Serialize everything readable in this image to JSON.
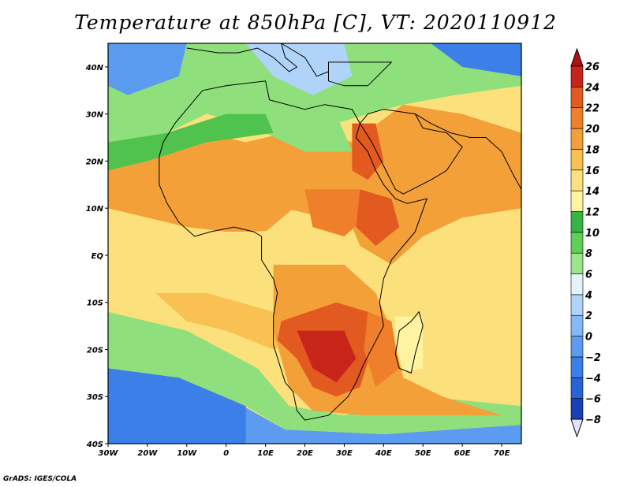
{
  "title": "Temperature at 850hPa [C], VT: 2020110912",
  "footer": "GrADS: IGES/COLA",
  "map": {
    "lon_range": [
      -30,
      75
    ],
    "lat_range": [
      -40,
      45
    ],
    "lat_ticks": [
      {
        "value": 40,
        "label": "40N"
      },
      {
        "value": 30,
        "label": "30N"
      },
      {
        "value": 20,
        "label": "20N"
      },
      {
        "value": 10,
        "label": "10N"
      },
      {
        "value": 0,
        "label": "EQ"
      },
      {
        "value": -10,
        "label": "10S"
      },
      {
        "value": -20,
        "label": "20S"
      },
      {
        "value": -30,
        "label": "30S"
      },
      {
        "value": -40,
        "label": "40S"
      }
    ],
    "lon_ticks": [
      {
        "value": -30,
        "label": "30W"
      },
      {
        "value": -20,
        "label": "20W"
      },
      {
        "value": -10,
        "label": "10W"
      },
      {
        "value": 0,
        "label": "0"
      },
      {
        "value": 10,
        "label": "10E"
      },
      {
        "value": 20,
        "label": "20E"
      },
      {
        "value": 30,
        "label": "30E"
      },
      {
        "value": 40,
        "label": "40E"
      },
      {
        "value": 50,
        "label": "50E"
      },
      {
        "value": 60,
        "label": "60E"
      },
      {
        "value": 70,
        "label": "70E"
      }
    ],
    "background_value": 16,
    "temperature_regions": [
      {
        "name": "southern-ocean",
        "value": 4,
        "points": [
          [
            -30,
            -40
          ],
          [
            75,
            -40
          ],
          [
            75,
            -36
          ],
          [
            40,
            -38
          ],
          [
            15,
            -37
          ],
          [
            0,
            -30
          ],
          [
            -10,
            -22
          ],
          [
            -30,
            -18
          ]
        ]
      },
      {
        "name": "south-atlantic-cool",
        "value": 2,
        "points": [
          [
            -30,
            -40
          ],
          [
            5,
            -40
          ],
          [
            5,
            -32
          ],
          [
            -12,
            -26
          ],
          [
            -30,
            -24
          ]
        ]
      },
      {
        "name": "sw-atlantic-green",
        "value": 10,
        "points": [
          [
            -30,
            -24
          ],
          [
            -12,
            -26
          ],
          [
            5,
            -32
          ],
          [
            15,
            -37
          ],
          [
            40,
            -38
          ],
          [
            75,
            -36
          ],
          [
            75,
            -32
          ],
          [
            50,
            -30
          ],
          [
            30,
            -34
          ],
          [
            16,
            -32
          ],
          [
            8,
            -24
          ],
          [
            -10,
            -16
          ],
          [
            -30,
            -12
          ]
        ]
      },
      {
        "name": "south-atlantic-warm-tongue",
        "value": 18,
        "points": [
          [
            -18,
            -8
          ],
          [
            -5,
            -8
          ],
          [
            12,
            -12
          ],
          [
            18,
            -18
          ],
          [
            12,
            -20
          ],
          [
            0,
            -16
          ],
          [
            -10,
            -14
          ]
        ]
      },
      {
        "name": "mediterranean-europe",
        "value": 10,
        "points": [
          [
            -30,
            45
          ],
          [
            75,
            45
          ],
          [
            75,
            36
          ],
          [
            58,
            34
          ],
          [
            45,
            32
          ],
          [
            36,
            30
          ],
          [
            28,
            28
          ],
          [
            15,
            26
          ],
          [
            5,
            28
          ],
          [
            -5,
            30
          ],
          [
            -15,
            26
          ],
          [
            -30,
            24
          ]
        ]
      },
      {
        "name": "european-cold",
        "value": 6,
        "points": [
          [
            5,
            45
          ],
          [
            30,
            45
          ],
          [
            32,
            38
          ],
          [
            22,
            34
          ],
          [
            12,
            38
          ]
        ]
      },
      {
        "name": "eastern-europe-blue",
        "value": 2,
        "points": [
          [
            52,
            45
          ],
          [
            75,
            45
          ],
          [
            75,
            38
          ],
          [
            60,
            40
          ]
        ]
      },
      {
        "name": "north-atlantic-blue",
        "value": 4,
        "points": [
          [
            -30,
            45
          ],
          [
            -10,
            45
          ],
          [
            -12,
            38
          ],
          [
            -25,
            34
          ],
          [
            -30,
            36
          ]
        ]
      },
      {
        "name": "west-africa-orange",
        "value": 20,
        "points": [
          [
            -30,
            22
          ],
          [
            -15,
            24
          ],
          [
            -5,
            26
          ],
          [
            5,
            24
          ],
          [
            15,
            20
          ],
          [
            20,
            12
          ],
          [
            10,
            5
          ],
          [
            0,
            5
          ],
          [
            -10,
            6
          ],
          [
            -20,
            8
          ],
          [
            -30,
            10
          ]
        ]
      },
      {
        "name": "sahara-orange",
        "value": 20,
        "points": [
          [
            5,
            24
          ],
          [
            15,
            26
          ],
          [
            25,
            26
          ],
          [
            32,
            24
          ],
          [
            34,
            12
          ],
          [
            25,
            8
          ],
          [
            15,
            10
          ]
        ]
      },
      {
        "name": "horn-arabia-orange",
        "value": 20,
        "points": [
          [
            32,
            24
          ],
          [
            45,
            32
          ],
          [
            60,
            30
          ],
          [
            75,
            26
          ],
          [
            75,
            10
          ],
          [
            60,
            8
          ],
          [
            50,
            4
          ],
          [
            42,
            -2
          ],
          [
            34,
            2
          ],
          [
            30,
            10
          ]
        ]
      },
      {
        "name": "indian-ocean-yellow",
        "value": 16,
        "points": [
          [
            42,
            -2
          ],
          [
            75,
            4
          ],
          [
            75,
            -20
          ],
          [
            60,
            -18
          ],
          [
            50,
            -10
          ]
        ]
      },
      {
        "name": "central-africa-yellow",
        "value": 16,
        "points": [
          [
            5,
            5
          ],
          [
            30,
            6
          ],
          [
            38,
            -4
          ],
          [
            30,
            -8
          ],
          [
            15,
            -4
          ],
          [
            8,
            0
          ]
        ]
      },
      {
        "name": "central-south-orange",
        "value": 20,
        "points": [
          [
            12,
            -2
          ],
          [
            30,
            -2
          ],
          [
            38,
            -8
          ],
          [
            42,
            -16
          ],
          [
            45,
            -26
          ],
          [
            55,
            -30
          ],
          [
            70,
            -34
          ],
          [
            50,
            -34
          ],
          [
            35,
            -34
          ],
          [
            22,
            -33
          ],
          [
            16,
            -28
          ],
          [
            12,
            -16
          ]
        ]
      },
      {
        "name": "southern-africa-red",
        "value": 24,
        "points": [
          [
            14,
            -14
          ],
          [
            28,
            -10
          ],
          [
            36,
            -12
          ],
          [
            37,
            -20
          ],
          [
            34,
            -28
          ],
          [
            28,
            -30
          ],
          [
            22,
            -28
          ],
          [
            18,
            -22
          ],
          [
            13,
            -18
          ]
        ]
      },
      {
        "name": "southern-africa-hot",
        "value": 26,
        "points": [
          [
            18,
            -16
          ],
          [
            30,
            -16
          ],
          [
            33,
            -22
          ],
          [
            28,
            -27
          ],
          [
            22,
            -24
          ]
        ]
      },
      {
        "name": "sahel-red",
        "value": 22,
        "points": [
          [
            20,
            14
          ],
          [
            34,
            14
          ],
          [
            38,
            10
          ],
          [
            30,
            4
          ],
          [
            22,
            6
          ]
        ]
      },
      {
        "name": "ethiopia-red",
        "value": 24,
        "points": [
          [
            34,
            14
          ],
          [
            42,
            12
          ],
          [
            44,
            6
          ],
          [
            38,
            2
          ],
          [
            33,
            6
          ]
        ]
      },
      {
        "name": "red-sea-red",
        "value": 24,
        "points": [
          [
            32,
            28
          ],
          [
            38,
            28
          ],
          [
            40,
            20
          ],
          [
            36,
            16
          ],
          [
            32,
            18
          ]
        ]
      },
      {
        "name": "mozambique-channel-red",
        "value": 22,
        "points": [
          [
            36,
            -12
          ],
          [
            42,
            -14
          ],
          [
            44,
            -24
          ],
          [
            38,
            -28
          ],
          [
            35,
            -20
          ]
        ]
      },
      {
        "name": "madagascar-cool",
        "value": 14,
        "points": [
          [
            43,
            -13
          ],
          [
            50,
            -13
          ],
          [
            50,
            -24
          ],
          [
            45,
            -25
          ],
          [
            43,
            -18
          ]
        ]
      },
      {
        "name": "algeria-green",
        "value": 10,
        "points": [
          [
            8,
            32
          ],
          [
            28,
            30
          ],
          [
            32,
            22
          ],
          [
            20,
            22
          ],
          [
            10,
            26
          ]
        ]
      },
      {
        "name": "saharan-green-strip",
        "value": 12,
        "points": [
          [
            -30,
            24
          ],
          [
            -15,
            26
          ],
          [
            0,
            30
          ],
          [
            10,
            30
          ],
          [
            12,
            26
          ],
          [
            -5,
            24
          ],
          [
            -20,
            20
          ],
          [
            -30,
            18
          ]
        ]
      }
    ],
    "coastline": [
      [
        -17,
        21
      ],
      [
        -16,
        24
      ],
      [
        -13,
        28
      ],
      [
        -9,
        32
      ],
      [
        -6,
        35
      ],
      [
        0,
        36
      ],
      [
        10,
        37
      ],
      [
        11,
        33
      ],
      [
        20,
        31
      ],
      [
        25,
        32
      ],
      [
        32,
        31
      ],
      [
        34,
        28
      ],
      [
        33,
        25
      ],
      [
        36,
        22
      ],
      [
        38,
        18
      ],
      [
        40,
        15
      ],
      [
        43,
        12
      ],
      [
        46,
        11
      ],
      [
        51,
        12
      ],
      [
        48,
        5
      ],
      [
        42,
        -1
      ],
      [
        40,
        -5
      ],
      [
        39,
        -10
      ],
      [
        40,
        -15
      ],
      [
        35,
        -23
      ],
      [
        33,
        -27
      ],
      [
        31,
        -30
      ],
      [
        26,
        -34
      ],
      [
        20,
        -35
      ],
      [
        18,
        -33
      ],
      [
        17,
        -29
      ],
      [
        15,
        -27
      ],
      [
        12,
        -19
      ],
      [
        12,
        -13
      ],
      [
        13,
        -8
      ],
      [
        12,
        -5
      ],
      [
        9,
        -1
      ],
      [
        9,
        4
      ],
      [
        7,
        5
      ],
      [
        2,
        6
      ],
      [
        -4,
        5
      ],
      [
        -8,
        4
      ],
      [
        -12,
        7
      ],
      [
        -15,
        11
      ],
      [
        -17,
        15
      ],
      [
        -17,
        21
      ]
    ],
    "madagascar": [
      [
        44,
        -16
      ],
      [
        47,
        -14
      ],
      [
        49,
        -12
      ],
      [
        50,
        -15
      ],
      [
        48,
        -21
      ],
      [
        47,
        -25
      ],
      [
        44,
        -24
      ],
      [
        43,
        -21
      ],
      [
        44,
        -16
      ]
    ],
    "arabia": [
      [
        34,
        28
      ],
      [
        36,
        30
      ],
      [
        40,
        31
      ],
      [
        48,
        30
      ],
      [
        50,
        27
      ],
      [
        56,
        26
      ],
      [
        60,
        23
      ],
      [
        56,
        18
      ],
      [
        52,
        16
      ],
      [
        45,
        13
      ],
      [
        43,
        14
      ],
      [
        40,
        19
      ],
      [
        37,
        24
      ],
      [
        34,
        28
      ]
    ],
    "europe": [
      [
        -10,
        44
      ],
      [
        -2,
        43
      ],
      [
        3,
        43
      ],
      [
        8,
        44
      ],
      [
        12,
        42
      ],
      [
        16,
        39
      ],
      [
        18,
        40
      ],
      [
        15,
        42
      ],
      [
        14,
        45
      ],
      [
        20,
        42
      ],
      [
        23,
        38
      ],
      [
        26,
        39
      ],
      [
        26,
        41
      ],
      [
        28,
        41
      ],
      [
        36,
        41
      ],
      [
        42,
        41
      ],
      [
        36,
        36
      ],
      [
        30,
        36
      ],
      [
        26,
        37
      ],
      [
        26,
        40
      ]
    ],
    "iran_coast": [
      [
        48,
        30
      ],
      [
        52,
        28
      ],
      [
        57,
        26
      ],
      [
        62,
        25
      ],
      [
        66,
        25
      ],
      [
        70,
        22
      ],
      [
        73,
        17
      ],
      [
        75,
        14
      ]
    ],
    "colorbar": {
      "levels": [
        -8,
        -6,
        -4,
        -2,
        0,
        2,
        4,
        6,
        8,
        10,
        12,
        14,
        16,
        18,
        20,
        22,
        24,
        26
      ],
      "colors": [
        "#0a1a8c",
        "#1a3fb8",
        "#2a62d8",
        "#3d7fe8",
        "#5c9cf0",
        "#85b8f6",
        "#b0d3fa",
        "#e2f3fb",
        "#9be58c",
        "#5fcf56",
        "#35b541",
        "#fdf3a0",
        "#fbe07b",
        "#f9c052",
        "#f3a039",
        "#ef7f2b",
        "#e25a20",
        "#c8251a"
      ],
      "below_color": "#e4e2ff",
      "above_color": "#b01111"
    },
    "colors": {
      "4": "#5c9cf0",
      "2": "#3d7fe8",
      "6": "#b0d3fa",
      "10": "#8fe07c",
      "12": "#4fc34d",
      "14": "#fdf3a0",
      "16": "#fbe07b",
      "18": "#f9c052",
      "20": "#f3a039",
      "22": "#ef7f2b",
      "24": "#e25a20",
      "26": "#c8251a"
    }
  }
}
